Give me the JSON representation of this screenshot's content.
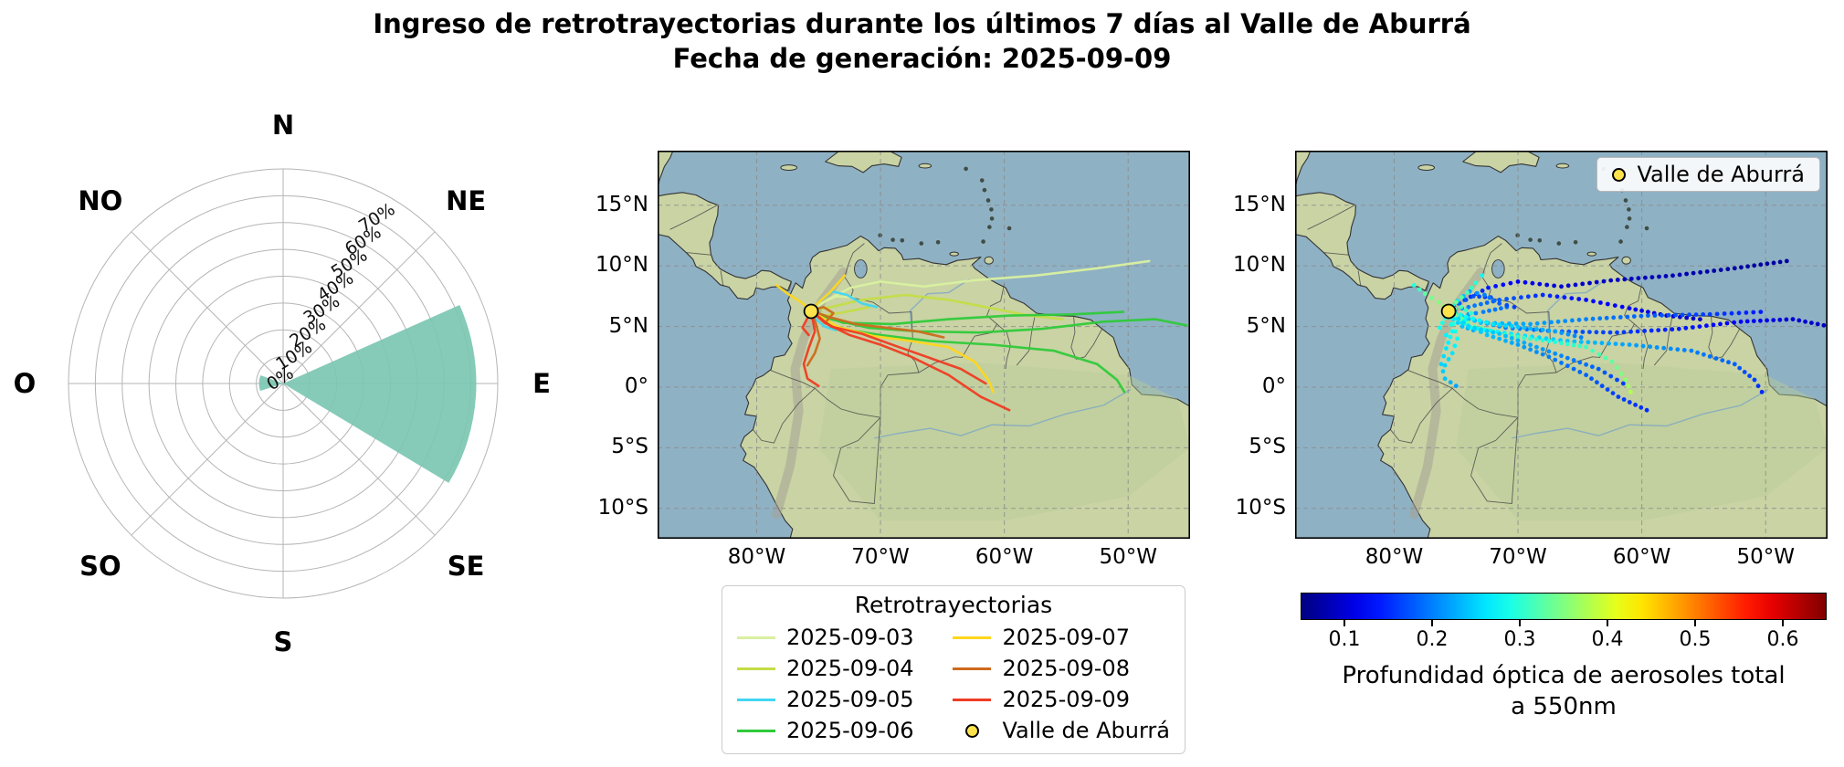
{
  "figure": {
    "title_line1": "Ingreso de retrotrayectorias durante los últimos 7 días al Valle de Aburrá",
    "title_line2": "Fecha de generación: 2025-09-09"
  },
  "colors": {
    "ocean": "#8fb1c4",
    "land": "#c9d3a4",
    "rose_fill": "#7cc5b2",
    "rose_grid": "#b5b5b5",
    "grid": "#8a8a8a"
  },
  "chart_data": [
    {
      "type": "windrose",
      "direction_labels": [
        "N",
        "NE",
        "E",
        "SE",
        "S",
        "SO",
        "O",
        "NO"
      ],
      "ring_values": [
        0,
        10,
        20,
        30,
        40,
        50,
        60,
        70
      ],
      "ring_tick_labels": [
        "0%",
        "10%",
        "20%",
        "30%",
        "40%",
        "50%",
        "60%",
        "70%"
      ],
      "ring_max": 80,
      "sectors": [
        {
          "start_deg": 66,
          "end_deg": 121,
          "value": 72
        },
        {
          "start_deg": 252,
          "end_deg": 290,
          "value": 9
        }
      ]
    },
    {
      "type": "map-trajectories",
      "legend_title": "Retrotrayectorias",
      "extent": {
        "lon": [
          -88,
          -45
        ],
        "lat": [
          -12.5,
          19.5
        ]
      },
      "x_ticks": [
        {
          "value": -80,
          "label": "80°W"
        },
        {
          "value": -70,
          "label": "70°W"
        },
        {
          "value": -60,
          "label": "60°W"
        },
        {
          "value": -50,
          "label": "50°W"
        }
      ],
      "y_ticks": [
        {
          "value": 15,
          "label": "15°N"
        },
        {
          "value": 10,
          "label": "10°N"
        },
        {
          "value": 5,
          "label": "5°N"
        },
        {
          "value": 0,
          "label": "0°"
        },
        {
          "value": -5,
          "label": "5°S"
        },
        {
          "value": -10,
          "label": "10°S"
        }
      ],
      "station": {
        "label": "Valle de Aburrá",
        "lon": -75.6,
        "lat": 6.25,
        "marker_color": "#ffe34d"
      },
      "series": [
        {
          "date": "2025-09-03",
          "color": "#d9f0a0",
          "paths": [
            [
              [
                -75.6,
                6.3
              ],
              [
                -74.3,
                7.2
              ],
              [
                -72.4,
                8.2
              ],
              [
                -70.0,
                8.7
              ],
              [
                -66.5,
                8.3
              ],
              [
                -62.5,
                8.8
              ],
              [
                -57.5,
                9.2
              ],
              [
                -52.5,
                9.8
              ],
              [
                -48.3,
                10.4
              ]
            ],
            [
              [
                -75.6,
                6.3
              ],
              [
                -74.8,
                6.9
              ],
              [
                -73.6,
                7.5
              ],
              [
                -72.2,
                7.4
              ]
            ]
          ],
          "aod": [
            [
              0.18,
              0.16,
              0.14,
              0.12,
              0.1,
              0.09,
              0.08,
              0.07,
              0.07
            ],
            [
              0.2,
              0.18,
              0.17,
              0.16
            ]
          ]
        },
        {
          "date": "2025-09-04",
          "color": "#c4dd46",
          "paths": [
            [
              [
                -75.6,
                6.3
              ],
              [
                -74.0,
                6.6
              ],
              [
                -71.5,
                7.2
              ],
              [
                -68.0,
                7.6
              ],
              [
                -64.5,
                7.2
              ],
              [
                -61.0,
                6.5
              ],
              [
                -58.0,
                5.9
              ],
              [
                -55.3,
                5.6
              ]
            ],
            [
              [
                -75.6,
                6.3
              ],
              [
                -74.6,
                5.9
              ],
              [
                -72.8,
                6.2
              ],
              [
                -70.9,
                6.6
              ]
            ]
          ],
          "aod": [
            [
              0.22,
              0.2,
              0.18,
              0.15,
              0.13,
              0.12,
              0.1,
              0.09
            ],
            [
              0.24,
              0.22,
              0.2,
              0.19
            ]
          ]
        },
        {
          "date": "2025-09-05",
          "color": "#41d6f2",
          "paths": [
            [
              [
                -75.6,
                6.3
              ],
              [
                -74.9,
                7.1
              ],
              [
                -73.9,
                7.9
              ],
              [
                -72.7,
                7.6
              ],
              [
                -71.5,
                6.9
              ],
              [
                -70.3,
                6.6
              ]
            ],
            [
              [
                -75.6,
                6.3
              ],
              [
                -75.2,
                5.6
              ],
              [
                -74.5,
                5.0
              ],
              [
                -73.6,
                4.7
              ]
            ]
          ],
          "aod": [
            [
              0.28,
              0.26,
              0.22,
              0.2,
              0.18,
              0.16
            ],
            [
              0.3,
              0.26,
              0.24,
              0.22
            ]
          ]
        },
        {
          "date": "2025-09-06",
          "color": "#2fca3a",
          "paths": [
            [
              [
                -75.6,
                6.3
              ],
              [
                -74.0,
                5.6
              ],
              [
                -71.0,
                4.9
              ],
              [
                -67.0,
                4.6
              ],
              [
                -62.0,
                4.5
              ],
              [
                -57.0,
                4.8
              ],
              [
                -52.0,
                5.4
              ],
              [
                -47.8,
                5.6
              ],
              [
                -45.3,
                5.1
              ]
            ],
            [
              [
                -75.6,
                6.3
              ],
              [
                -73.8,
                4.9
              ],
              [
                -70.0,
                4.3
              ],
              [
                -66.0,
                3.8
              ],
              [
                -61.0,
                3.5
              ],
              [
                -56.0,
                3.0
              ],
              [
                -52.5,
                1.9
              ],
              [
                -50.9,
                0.6
              ],
              [
                -50.3,
                -0.4
              ]
            ],
            [
              [
                -75.6,
                6.3
              ],
              [
                -73.0,
                5.3
              ],
              [
                -69.0,
                5.2
              ],
              [
                -64.5,
                5.6
              ],
              [
                -59.5,
                5.9
              ],
              [
                -54.5,
                6.0
              ],
              [
                -50.4,
                6.2
              ]
            ]
          ],
          "aod": [
            [
              0.25,
              0.22,
              0.2,
              0.18,
              0.16,
              0.14,
              0.12,
              0.1,
              0.09
            ],
            [
              0.3,
              0.28,
              0.26,
              0.24,
              0.22,
              0.2,
              0.18,
              0.16,
              0.15
            ],
            [
              0.26,
              0.24,
              0.22,
              0.2,
              0.18,
              0.16,
              0.14
            ]
          ]
        },
        {
          "date": "2025-09-07",
          "color": "#ffd61c",
          "paths": [
            [
              [
                -75.6,
                6.3
              ],
              [
                -76.4,
                7.0
              ],
              [
                -77.5,
                7.7
              ],
              [
                -78.4,
                8.4
              ]
            ],
            [
              [
                -75.6,
                6.3
              ],
              [
                -75.0,
                7.0
              ],
              [
                -74.1,
                7.8
              ],
              [
                -73.4,
                8.6
              ],
              [
                -72.9,
                9.2
              ]
            ],
            [
              [
                -75.6,
                6.3
              ],
              [
                -73.5,
                5.0
              ],
              [
                -70.5,
                4.2
              ],
              [
                -67.5,
                3.8
              ],
              [
                -64.5,
                3.3
              ],
              [
                -62.4,
                2.1
              ],
              [
                -61.3,
                0.6
              ],
              [
                -60.9,
                -0.4
              ]
            ]
          ],
          "aod": [
            [
              0.38,
              0.35,
              0.33,
              0.3
            ],
            [
              0.36,
              0.34,
              0.32,
              0.3,
              0.28
            ],
            [
              0.35,
              0.33,
              0.31,
              0.29,
              0.31,
              0.33,
              0.36,
              0.38
            ]
          ]
        },
        {
          "date": "2025-09-08",
          "color": "#cd6a1c",
          "paths": [
            [
              [
                -75.6,
                6.3
              ],
              [
                -75.2,
                5.2
              ],
              [
                -74.9,
                4.0
              ],
              [
                -75.3,
                2.8
              ],
              [
                -75.9,
                1.8
              ]
            ],
            [
              [
                -75.6,
                6.3
              ],
              [
                -74.2,
                5.8
              ],
              [
                -72.0,
                5.2
              ],
              [
                -69.5,
                4.9
              ],
              [
                -67.0,
                4.6
              ],
              [
                -64.9,
                4.1
              ]
            ],
            [
              [
                -75.6,
                6.3
              ],
              [
                -74.6,
                6.6
              ],
              [
                -73.8,
                6.1
              ],
              [
                -74.3,
                5.5
              ]
            ]
          ],
          "aod": [
            [
              0.32,
              0.3,
              0.28,
              0.26,
              0.25
            ],
            [
              0.3,
              0.28,
              0.26,
              0.24,
              0.22,
              0.2
            ],
            [
              0.34,
              0.32,
              0.3,
              0.28
            ]
          ]
        },
        {
          "date": "2025-09-09",
          "color": "#ef3c24",
          "paths": [
            [
              [
                -75.6,
                6.3
              ],
              [
                -74.5,
                5.3
              ],
              [
                -72.5,
                4.3
              ],
              [
                -70.0,
                3.5
              ],
              [
                -67.5,
                2.5
              ],
              [
                -64.5,
                1.0
              ],
              [
                -61.9,
                -0.8
              ],
              [
                -59.6,
                -1.9
              ]
            ],
            [
              [
                -75.6,
                6.3
              ],
              [
                -75.3,
                4.6
              ],
              [
                -75.8,
                3.2
              ],
              [
                -76.2,
                1.9
              ],
              [
                -75.9,
                0.7
              ],
              [
                -75.0,
                0.1
              ]
            ],
            [
              [
                -75.6,
                6.3
              ],
              [
                -74.0,
                5.0
              ],
              [
                -71.5,
                4.4
              ],
              [
                -68.5,
                3.3
              ],
              [
                -66.0,
                2.4
              ],
              [
                -63.5,
                1.5
              ],
              [
                -61.5,
                0.3
              ]
            ],
            [
              [
                -75.6,
                6.3
              ],
              [
                -75.9,
                5.7
              ],
              [
                -76.3,
                4.9
              ],
              [
                -75.8,
                4.3
              ]
            ]
          ],
          "aod": [
            [
              0.28,
              0.26,
              0.24,
              0.22,
              0.2,
              0.18,
              0.16,
              0.15
            ],
            [
              0.3,
              0.28,
              0.26,
              0.25,
              0.24,
              0.22
            ],
            [
              0.26,
              0.25,
              0.24,
              0.22,
              0.2,
              0.18,
              0.16
            ],
            [
              0.32,
              0.3,
              0.28,
              0.27
            ]
          ]
        }
      ]
    },
    {
      "type": "map-scatter",
      "legend_label": "Valle de Aburrá",
      "colorbar": {
        "vmin": 0.05,
        "vmax": 0.65,
        "ticks": [
          0.1,
          0.2,
          0.3,
          0.4,
          0.5,
          0.6
        ],
        "label_line1": "Profundidad óptica de aerosoles total",
        "label_line2": "a 550nm"
      }
    }
  ]
}
